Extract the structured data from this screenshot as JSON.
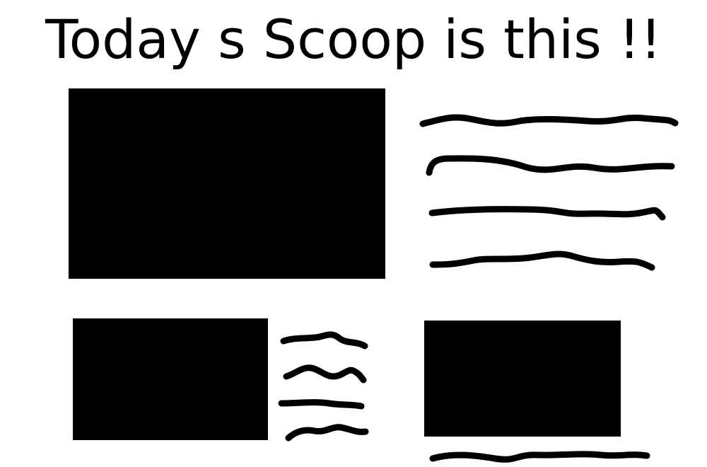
{
  "headline": "Today s Scoop is this !!",
  "colors": {
    "background": "#ffffff",
    "ink": "#000000"
  }
}
